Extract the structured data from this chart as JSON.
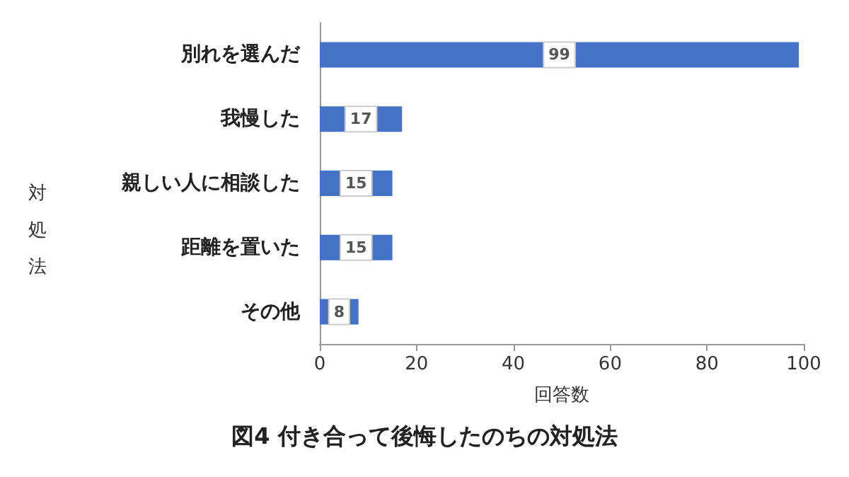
{
  "chart_data": {
    "type": "bar",
    "orientation": "horizontal",
    "title": "図4 付き合って後悔したのちの対処法",
    "xlabel": "回答数",
    "ylabel": "対処法",
    "categories": [
      "別れを選んだ",
      "我慢した",
      "親しい人に相談した",
      "距離を置いた",
      "その他"
    ],
    "values": [
      99,
      17,
      15,
      15,
      8
    ],
    "color": "#4472c4",
    "xlim": [
      0,
      100
    ],
    "xticks": [
      0,
      20,
      40,
      60,
      80,
      100
    ],
    "data_labels": true,
    "grid": false
  }
}
